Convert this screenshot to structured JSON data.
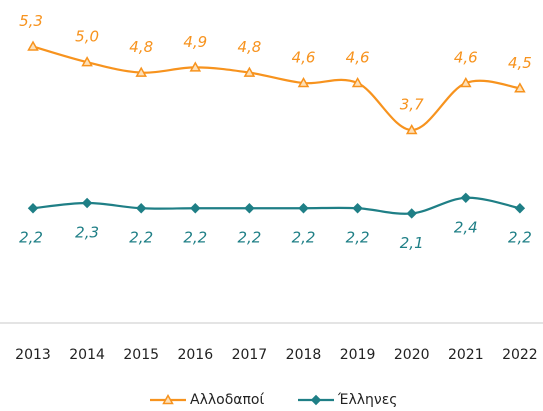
{
  "chart_data": {
    "type": "line",
    "categories": [
      "2013",
      "2014",
      "2015",
      "2016",
      "2017",
      "2018",
      "2019",
      "2020",
      "2021",
      "2022"
    ],
    "series": [
      {
        "name": "Αλλοδαποί",
        "color": "#f7931e",
        "marker": "triangle",
        "values": [
          5.3,
          5.0,
          4.8,
          4.9,
          4.8,
          4.6,
          4.6,
          3.7,
          4.6,
          4.5
        ],
        "value_labels": [
          "5,3",
          "5,0",
          "4,8",
          "4,9",
          "4,8",
          "4,6",
          "4,6",
          "3,7",
          "4,6",
          "4,5"
        ]
      },
      {
        "name": "Έλληνες",
        "color": "#1f7f86",
        "marker": "diamond",
        "values": [
          2.2,
          2.3,
          2.2,
          2.2,
          2.2,
          2.2,
          2.2,
          2.1,
          2.4,
          2.2
        ],
        "value_labels": [
          "2,2",
          "2,3",
          "2,2",
          "2,2",
          "2,2",
          "2,2",
          "2,2",
          "2,1",
          "2,4",
          "2,2"
        ]
      }
    ],
    "ylim": [
      0,
      6
    ],
    "legend": "bottom"
  }
}
